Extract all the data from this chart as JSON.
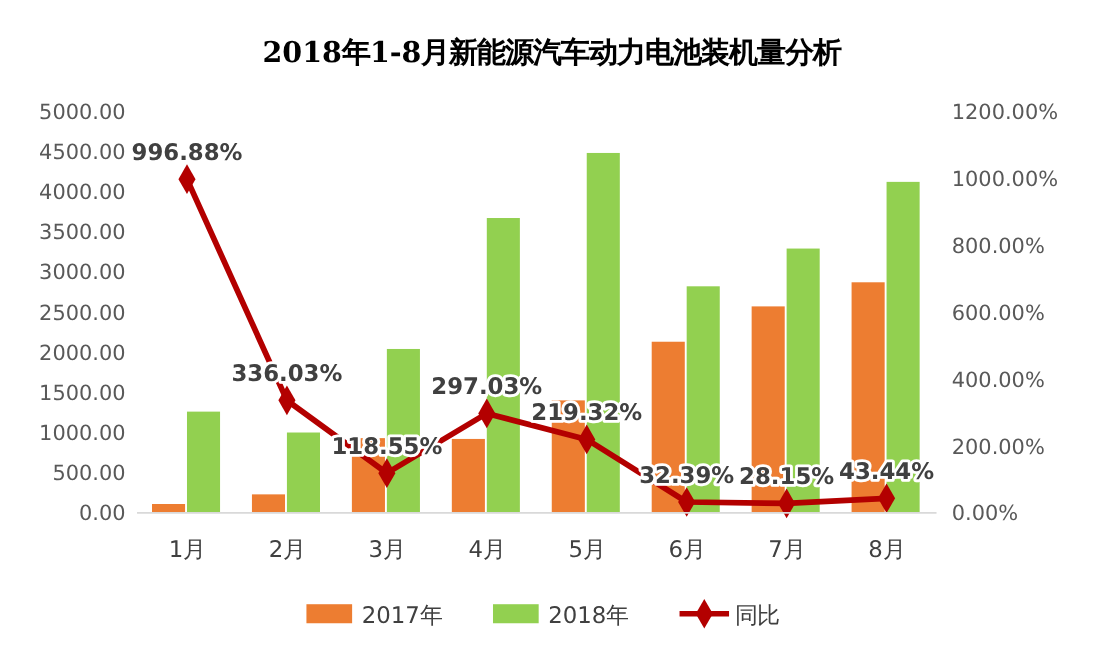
{
  "chart_data": {
    "type": "bar",
    "title": "2018年1-8月新能源汽车动力电池装机量分析",
    "categories": [
      "1月",
      "2月",
      "3月",
      "4月",
      "5月",
      "6月",
      "7月",
      "8月"
    ],
    "series": [
      {
        "name": "2017年",
        "color": "#ed7d31",
        "values": [
          110,
          230,
          930,
          920,
          1400,
          2130,
          2570,
          2870
        ]
      },
      {
        "name": "2018年",
        "color": "#92d050",
        "values": [
          1260,
          1000,
          2040,
          3670,
          4480,
          2820,
          3290,
          4120
        ]
      },
      {
        "name": "同比",
        "type": "line",
        "axis": "y2",
        "color": "#b30000",
        "marker": "diamond",
        "values": [
          996.88,
          336.03,
          118.55,
          297.03,
          219.32,
          32.39,
          28.15,
          43.44
        ],
        "value_labels": [
          "996.88%",
          "336.03%",
          "118.55%",
          "297.03%",
          "219.32%",
          "32.39%",
          "28.15%",
          "43.44%"
        ]
      }
    ],
    "ylim": [
      0,
      5000
    ],
    "yticks": [
      {
        "value": 0,
        "label": "0.00"
      },
      {
        "value": 500,
        "label": "500.00"
      },
      {
        "value": 1000,
        "label": "1000.00"
      },
      {
        "value": 1500,
        "label": "1500.00"
      },
      {
        "value": 2000,
        "label": "2000.00"
      },
      {
        "value": 2500,
        "label": "2500.00"
      },
      {
        "value": 3000,
        "label": "3000.00"
      },
      {
        "value": 3500,
        "label": "3500.00"
      },
      {
        "value": 4000,
        "label": "4000.00"
      },
      {
        "value": 4500,
        "label": "4500.00"
      },
      {
        "value": 5000,
        "label": "5000.00"
      }
    ],
    "y2lim": [
      0,
      1200
    ],
    "y2ticks": [
      {
        "value": 0,
        "label": "0.00%"
      },
      {
        "value": 200,
        "label": "200.00%"
      },
      {
        "value": 400,
        "label": "400.00%"
      },
      {
        "value": 600,
        "label": "600.00%"
      },
      {
        "value": 800,
        "label": "800.00%"
      },
      {
        "value": 1000,
        "label": "1000.00%"
      },
      {
        "value": 1200,
        "label": "1200.00%"
      }
    ],
    "grid": false,
    "legend": "bottom"
  }
}
